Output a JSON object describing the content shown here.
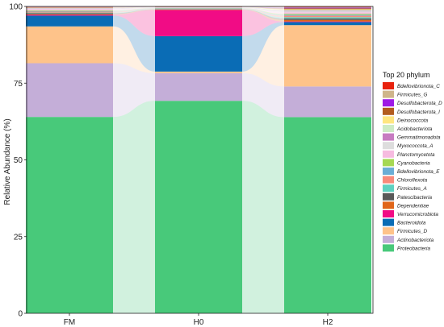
{
  "chart_data": {
    "type": "bar",
    "subtype": "stacked-100-alluvial",
    "ylabel": "Relative Abundance (%)",
    "ylim": [
      0,
      100
    ],
    "yticks": [
      0,
      25,
      50,
      75,
      100
    ],
    "categories": [
      "FM",
      "H0",
      "H2"
    ],
    "legend": {
      "title": "Top 20 phylum",
      "placement": "right"
    },
    "series": [
      {
        "name": "Proteobacteria",
        "color": "#48C97A",
        "values": [
          64.0,
          69.0,
          64.0
        ]
      },
      {
        "name": "Actinobacteriota",
        "color": "#C4AED8",
        "values": [
          17.5,
          9.0,
          10.0
        ]
      },
      {
        "name": "Firmicutes_D",
        "color": "#FEC38A",
        "values": [
          12.0,
          0.5,
          20.0
        ]
      },
      {
        "name": "Bacteroidota",
        "color": "#0A6CB5",
        "values": [
          3.5,
          11.5,
          1.0
        ]
      },
      {
        "name": "Verrucomicrobiota",
        "color": "#F10C85",
        "values": [
          0.3,
          8.5,
          0.2
        ]
      },
      {
        "name": "Dependentiae",
        "color": "#E0661A",
        "values": [
          0.2,
          0.1,
          0.5
        ]
      },
      {
        "name": "Patescibacteria",
        "color": "#595959",
        "values": [
          0.3,
          0.1,
          0.5
        ]
      },
      {
        "name": "Firmicutes_A",
        "color": "#5ED1C0",
        "values": [
          0.2,
          0.1,
          0.4
        ]
      },
      {
        "name": "Chloroflexota",
        "color": "#F98A7B",
        "values": [
          0.3,
          0.1,
          0.5
        ]
      },
      {
        "name": "Bdellovibrionota_E",
        "color": "#6BAED6",
        "values": [
          0.2,
          0.1,
          0.3
        ]
      },
      {
        "name": "Cyanobacteria",
        "color": "#A6D854",
        "values": [
          0.2,
          0.1,
          0.3
        ]
      },
      {
        "name": "Planctomycetota",
        "color": "#F6BBE0",
        "values": [
          0.4,
          0.1,
          0.5
        ]
      },
      {
        "name": "Myxococcota_A",
        "color": "#DDDDDD",
        "values": [
          0.2,
          0.1,
          0.3
        ]
      },
      {
        "name": "Gemmatimonadota",
        "color": "#C77CC1",
        "values": [
          0.1,
          0.05,
          0.2
        ]
      },
      {
        "name": "Acidobacteriota",
        "color": "#CDEBC5",
        "values": [
          0.1,
          0.05,
          0.3
        ]
      },
      {
        "name": "Deinococcota",
        "color": "#FFE680",
        "values": [
          0.1,
          0.05,
          0.2
        ]
      },
      {
        "name": "Desulfobacterota_I",
        "color": "#B35C1E",
        "values": [
          0.1,
          0.05,
          0.3
        ]
      },
      {
        "name": "Desulfobacterota_D",
        "color": "#9E1AE6",
        "values": [
          0.1,
          0.05,
          0.2
        ]
      },
      {
        "name": "Firmicutes_G",
        "color": "#CFB58A",
        "values": [
          0.1,
          0.05,
          0.2
        ]
      },
      {
        "name": "Bdellovibrionota_C",
        "color": "#E8220E",
        "values": [
          0.1,
          0.05,
          0.2
        ]
      }
    ]
  }
}
